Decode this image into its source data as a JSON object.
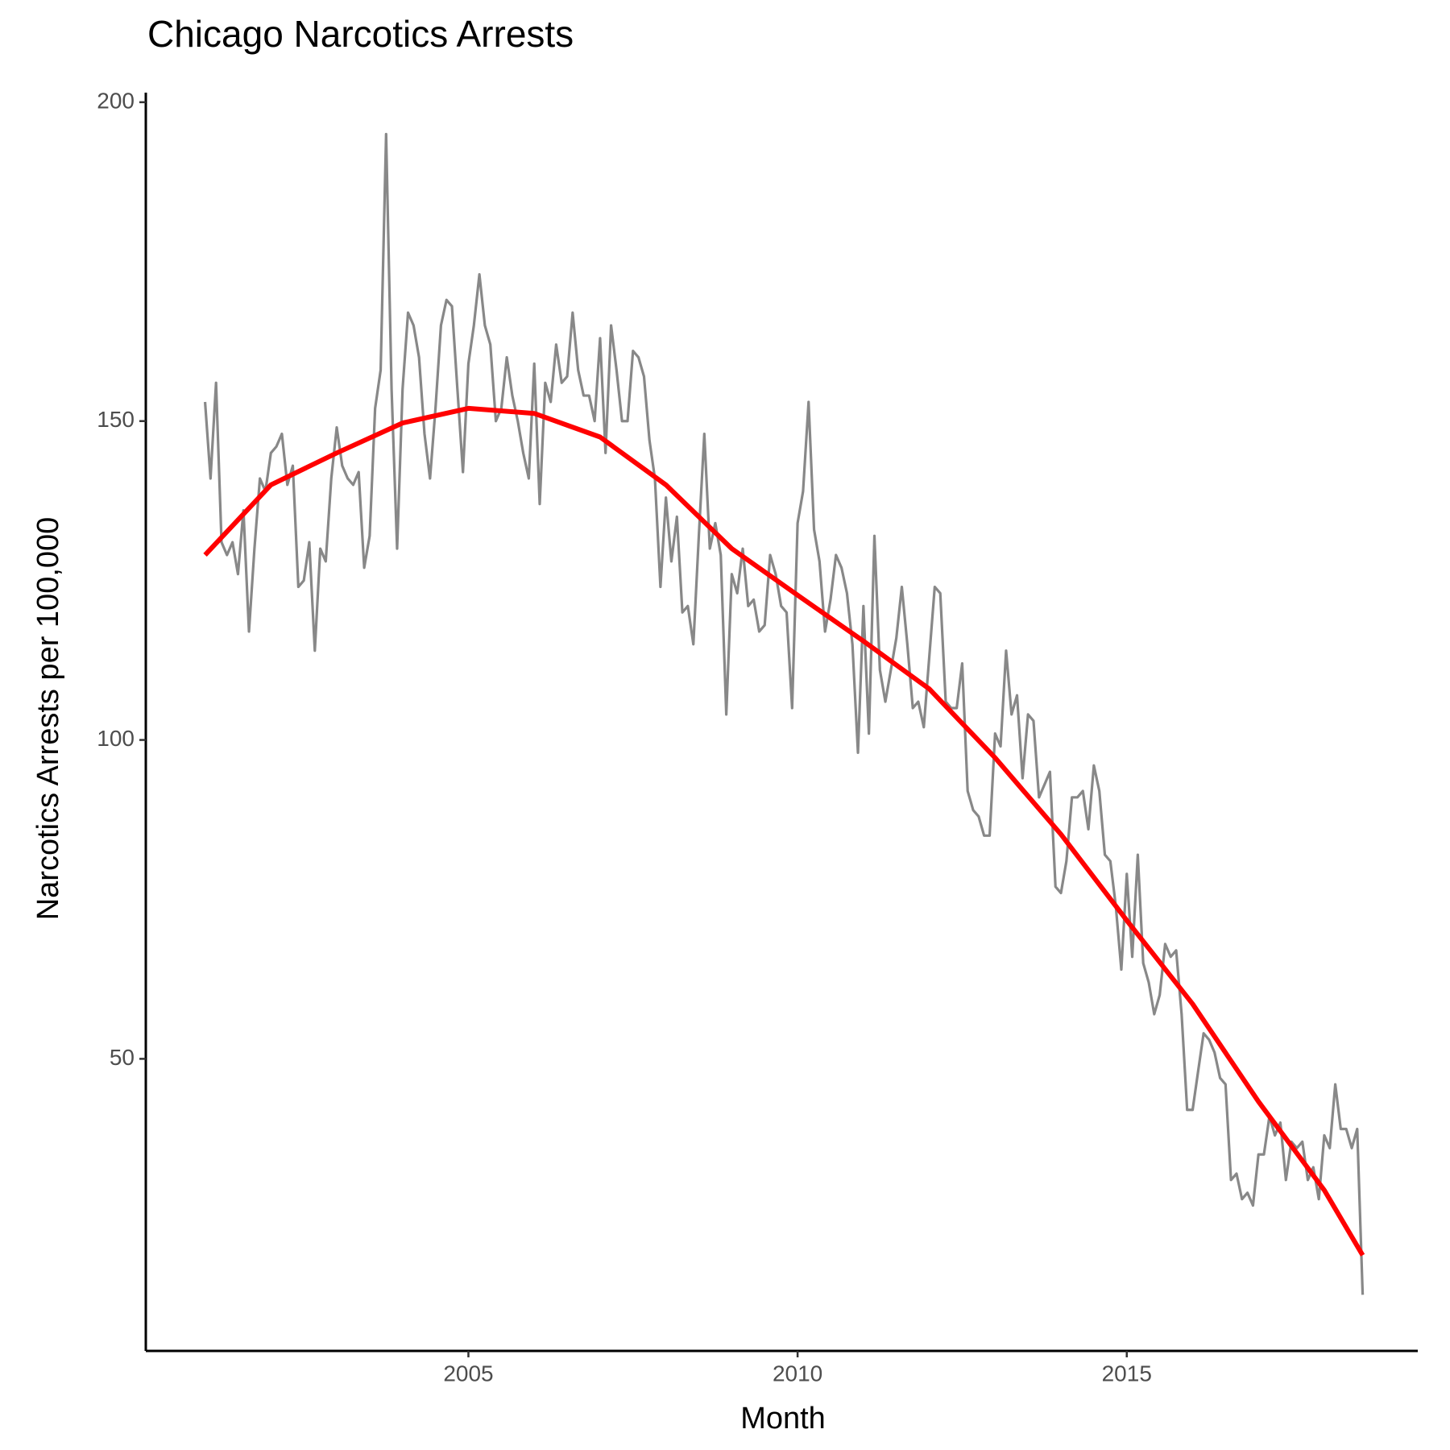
{
  "chart_data": {
    "type": "line",
    "title": "Chicago Narcotics Arrests",
    "x_label": "Month",
    "y_label": "Narcotics Arrests per 100,000",
    "xlim": [
      2000.1,
      2019.42
    ],
    "xticks": [
      2005,
      2010,
      2015
    ],
    "ylim": [
      4.2,
      201.5
    ],
    "yticks": [
      50,
      100,
      150,
      200
    ],
    "grid": false,
    "series": [
      {
        "color": "#888888",
        "x": [
          2001,
          2001.083,
          2001.167,
          2001.25,
          2001.333,
          2001.417,
          2001.5,
          2001.583,
          2001.667,
          2001.75,
          2001.833,
          2001.917,
          2002,
          2002.083,
          2002.167,
          2002.25,
          2002.333,
          2002.417,
          2002.5,
          2002.583,
          2002.667,
          2002.75,
          2002.833,
          2002.917,
          2003,
          2003.083,
          2003.167,
          2003.25,
          2003.333,
          2003.417,
          2003.5,
          2003.583,
          2003.667,
          2003.75,
          2003.833,
          2003.917,
          2004,
          2004.083,
          2004.167,
          2004.25,
          2004.333,
          2004.417,
          2004.5,
          2004.583,
          2004.667,
          2004.75,
          2004.833,
          2004.917,
          2005,
          2005.083,
          2005.167,
          2005.25,
          2005.333,
          2005.417,
          2005.5,
          2005.583,
          2005.667,
          2005.75,
          2005.833,
          2005.917,
          2006,
          2006.083,
          2006.167,
          2006.25,
          2006.333,
          2006.417,
          2006.5,
          2006.583,
          2006.667,
          2006.75,
          2006.833,
          2006.917,
          2007,
          2007.083,
          2007.167,
          2007.25,
          2007.333,
          2007.417,
          2007.5,
          2007.583,
          2007.667,
          2007.75,
          2007.833,
          2007.917,
          2008,
          2008.083,
          2008.167,
          2008.25,
          2008.333,
          2008.417,
          2008.5,
          2008.583,
          2008.667,
          2008.75,
          2008.833,
          2008.917,
          2009,
          2009.083,
          2009.167,
          2009.25,
          2009.333,
          2009.417,
          2009.5,
          2009.583,
          2009.667,
          2009.75,
          2009.833,
          2009.917,
          2010,
          2010.083,
          2010.167,
          2010.25,
          2010.333,
          2010.417,
          2010.5,
          2010.583,
          2010.667,
          2010.75,
          2010.833,
          2010.917,
          2011,
          2011.083,
          2011.167,
          2011.25,
          2011.333,
          2011.417,
          2011.5,
          2011.583,
          2011.667,
          2011.75,
          2011.833,
          2011.917,
          2012,
          2012.083,
          2012.167,
          2012.25,
          2012.333,
          2012.417,
          2012.5,
          2012.583,
          2012.667,
          2012.75,
          2012.833,
          2012.917,
          2013,
          2013.083,
          2013.167,
          2013.25,
          2013.333,
          2013.417,
          2013.5,
          2013.583,
          2013.667,
          2013.75,
          2013.833,
          2013.917,
          2014,
          2014.083,
          2014.167,
          2014.25,
          2014.333,
          2014.417,
          2014.5,
          2014.583,
          2014.667,
          2014.75,
          2014.833,
          2014.917,
          2015,
          2015.083,
          2015.167,
          2015.25,
          2015.333,
          2015.417,
          2015.5,
          2015.583,
          2015.667,
          2015.75,
          2015.833,
          2015.917,
          2016,
          2016.083,
          2016.167,
          2016.25,
          2016.333,
          2016.417,
          2016.5,
          2016.583,
          2016.667,
          2016.75,
          2016.833,
          2016.917,
          2017,
          2017.083,
          2017.167,
          2017.25,
          2017.333,
          2017.417,
          2017.5,
          2017.583,
          2017.667,
          2017.75,
          2017.833,
          2017.917,
          2018,
          2018.083,
          2018.167,
          2018.25,
          2018.333,
          2018.417,
          2018.5,
          2018.583
        ],
        "values": [
          153,
          141,
          156,
          131,
          129,
          131,
          126,
          136,
          117,
          130,
          141,
          139,
          145,
          146,
          148,
          140,
          143,
          124,
          125,
          131,
          114,
          130,
          128,
          141,
          149,
          143,
          141,
          140,
          142,
          127,
          132,
          152,
          158,
          195,
          155,
          130,
          155,
          167,
          165,
          160,
          148,
          141,
          152,
          165,
          169,
          168,
          155,
          142,
          159,
          165,
          173,
          165,
          162,
          150,
          152,
          160,
          154,
          150,
          145,
          141,
          159,
          137,
          156,
          153,
          162,
          156,
          157,
          167,
          158,
          154,
          154,
          150,
          163,
          145,
          165,
          158,
          150,
          150,
          161,
          160,
          157,
          147,
          141,
          124,
          138,
          128,
          135,
          120,
          121,
          115,
          132,
          148,
          130,
          134,
          129,
          104,
          126,
          123,
          130,
          121,
          122,
          117,
          118,
          129,
          126,
          121,
          120,
          105,
          134,
          139,
          153,
          133,
          128,
          117,
          122,
          129,
          127,
          123,
          115,
          98,
          121,
          101,
          132,
          111,
          106,
          111,
          116,
          124,
          115,
          105,
          106,
          102,
          113,
          124,
          123,
          106,
          105,
          105,
          112,
          92,
          89,
          88,
          85,
          85,
          101,
          99,
          114,
          104,
          107,
          94,
          104,
          103,
          91,
          93,
          95,
          77,
          76,
          81,
          91,
          91,
          92,
          86,
          96,
          92,
          82,
          81,
          74,
          64,
          79,
          66,
          82,
          65,
          62,
          57,
          60,
          68,
          66,
          67,
          57,
          42,
          42,
          48,
          54,
          53,
          51,
          47,
          46,
          31,
          32,
          28,
          29,
          27,
          35,
          35,
          41,
          38,
          40,
          31,
          37,
          36,
          37,
          31,
          33,
          28,
          38,
          36,
          46,
          39,
          39,
          36,
          39,
          13
        ]
      },
      {
        "color": "#ff0000",
        "x": [
          2001,
          2002,
          2003,
          2004,
          2005,
          2006,
          2007,
          2008,
          2009,
          2010,
          2011,
          2012,
          2013,
          2014,
          2015,
          2016,
          2017,
          2018,
          2018.583
        ],
        "values": [
          129,
          140,
          145,
          149.7,
          152,
          151.2,
          147.5,
          140,
          130,
          122.7,
          115.5,
          108,
          97.2,
          85.2,
          71.7,
          58.6,
          43.3,
          29.4,
          19.2
        ]
      }
    ]
  }
}
